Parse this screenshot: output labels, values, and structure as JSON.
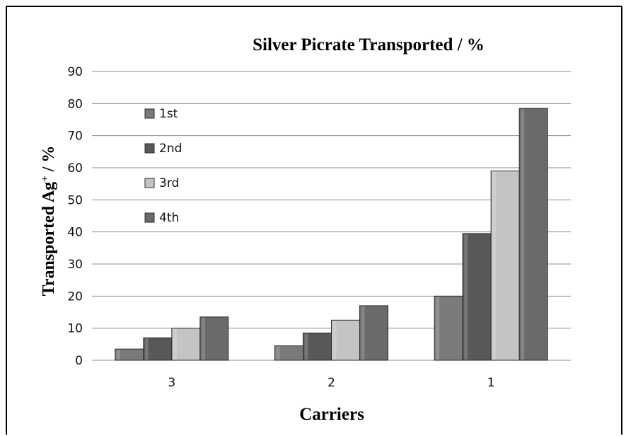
{
  "chart_data": {
    "type": "bar",
    "title": "Silver Picrate Transported / %",
    "xlabel": "Carriers",
    "ylabel": "Transported Ag+ / %",
    "ylabel_main": "Transported Ag",
    "ylabel_sup": "+",
    "ylabel_tail": " / %",
    "categories": [
      "3",
      "2",
      "1"
    ],
    "series": [
      {
        "name": "1st",
        "values": [
          3.5,
          4.5,
          20
        ],
        "color": "#7a7a7a"
      },
      {
        "name": "2nd",
        "values": [
          7,
          8.5,
          39.5
        ],
        "color": "#585858"
      },
      {
        "name": "3rd",
        "values": [
          10,
          12.5,
          59
        ],
        "color": "#c4c4c4"
      },
      {
        "name": "4th",
        "values": [
          13.5,
          17,
          78.5
        ],
        "color": "#6a6a6a"
      }
    ],
    "ylim": [
      0,
      90
    ],
    "yticks": [
      0,
      10,
      20,
      30,
      40,
      50,
      60,
      70,
      80,
      90
    ],
    "grid": true,
    "legend_position": "upper-left inside plot"
  }
}
